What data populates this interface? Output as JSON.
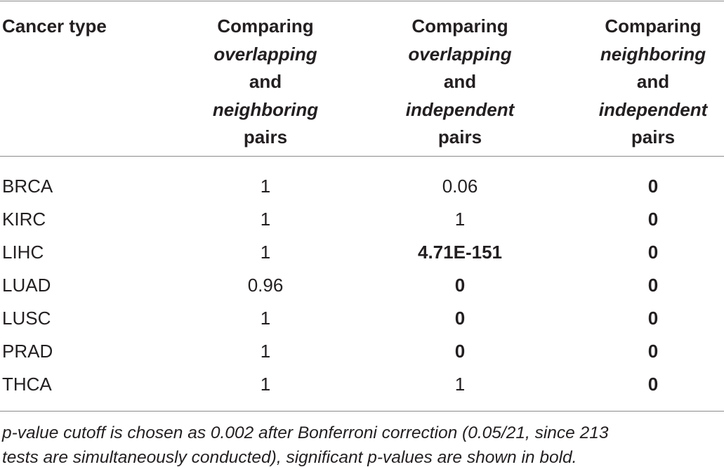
{
  "table": {
    "header": [
      [
        {
          "text": "Cancer type"
        }
      ],
      [
        {
          "text": "Comparing"
        },
        {
          "text": "overlapping",
          "italic": true
        },
        {
          "text": "and"
        },
        {
          "text": "neighboring",
          "italic": true
        },
        {
          "text": "pairs"
        }
      ],
      [
        {
          "text": "Comparing"
        },
        {
          "text": "overlapping",
          "italic": true
        },
        {
          "text": "and"
        },
        {
          "text": "independent",
          "italic": true
        },
        {
          "text": "pairs"
        }
      ],
      [
        {
          "text": "Comparing"
        },
        {
          "text": "neighboring",
          "italic": true
        },
        {
          "text": "and"
        },
        {
          "text": "independent",
          "italic": true
        },
        {
          "text": "pairs"
        }
      ]
    ],
    "rows": [
      {
        "label": "BRCA",
        "cells": [
          {
            "text": "1"
          },
          {
            "text": "0.06"
          },
          {
            "text": "0",
            "bold": true
          }
        ]
      },
      {
        "label": "KIRC",
        "cells": [
          {
            "text": "1"
          },
          {
            "text": "1"
          },
          {
            "text": "0",
            "bold": true
          }
        ]
      },
      {
        "label": "LIHC",
        "cells": [
          {
            "text": "1"
          },
          {
            "text": "4.71E-151",
            "bold": true
          },
          {
            "text": "0",
            "bold": true
          }
        ]
      },
      {
        "label": "LUAD",
        "cells": [
          {
            "text": "0.96"
          },
          {
            "text": "0",
            "bold": true
          },
          {
            "text": "0",
            "bold": true
          }
        ]
      },
      {
        "label": "LUSC",
        "cells": [
          {
            "text": "1"
          },
          {
            "text": "0",
            "bold": true
          },
          {
            "text": "0",
            "bold": true
          }
        ]
      },
      {
        "label": "PRAD",
        "cells": [
          {
            "text": "1"
          },
          {
            "text": "0",
            "bold": true
          },
          {
            "text": "0",
            "bold": true
          }
        ]
      },
      {
        "label": "THCA",
        "cells": [
          {
            "text": "1"
          },
          {
            "text": "1"
          },
          {
            "text": "0",
            "bold": true
          }
        ]
      }
    ],
    "footnote": {
      "italic": true,
      "lines": [
        "p-value cutoff is chosen as 0.002 after Bonferroni correction (0.05/21, since 213",
        "tests are simultaneously conducted), significant p-values are shown in bold."
      ]
    }
  }
}
